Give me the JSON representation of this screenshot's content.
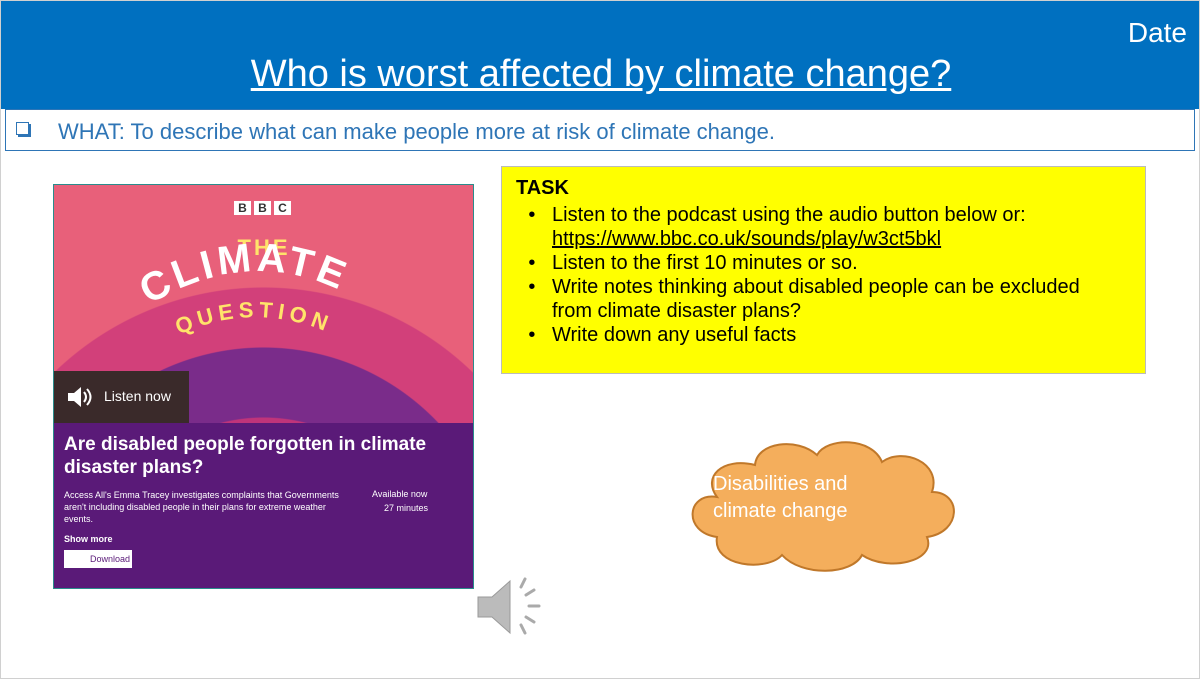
{
  "header": {
    "title": "Who is worst affected by climate change?",
    "date": "Date"
  },
  "objective": "WHAT: To describe what can make people more at risk of climate change.",
  "podcast_card": {
    "logo": [
      "B",
      "B",
      "C"
    ],
    "show_the": "THE",
    "show_climate": "CLIMATE",
    "show_question": "QUESTION",
    "listen_button": "Listen now",
    "headline": "Are disabled people forgotten in climate disaster plans?",
    "description": "Access All's Emma Tracey investigates complaints that Governments aren't including disabled people in their plans for extreme weather events.",
    "availability": "Available now",
    "duration": "27 minutes",
    "show_more": "Show more",
    "download": "Download"
  },
  "task": {
    "heading": "TASK",
    "items": [
      {
        "text": "Listen to the podcast using the audio button below or:",
        "link": "https://www.bbc.co.uk/sounds/play/w3ct5bkl"
      },
      {
        "text": "Listen to the first 10 minutes or so."
      },
      {
        "text": "Write notes thinking about disabled people can be excluded from climate disaster plans?"
      },
      {
        "text": "Write down any useful facts"
      }
    ]
  },
  "cloud_label": "Disabilities and climate change"
}
